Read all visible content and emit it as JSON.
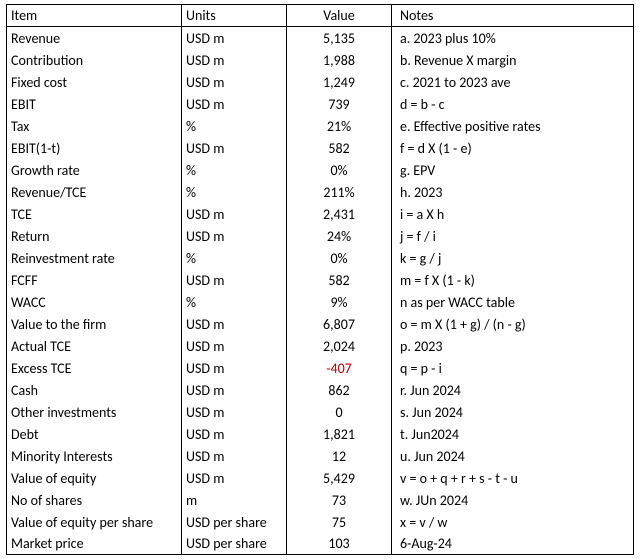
{
  "columns": [
    "Item",
    "Units",
    "Value",
    "Notes"
  ],
  "negative_color": "#c00000",
  "rows": [
    {
      "item": "Revenue",
      "units": "USD m",
      "value": "5,135",
      "neg": false,
      "notes": "a. 2023 plus 10%"
    },
    {
      "item": "Contribution",
      "units": "USD m",
      "value": "1,988",
      "neg": false,
      "notes": "b. Revenue X margin"
    },
    {
      "item": "Fixed cost",
      "units": "USD m",
      "value": "1,249",
      "neg": false,
      "notes": "c. 2021 to 2023 ave"
    },
    {
      "item": "EBIT",
      "units": "USD m",
      "value": "739",
      "neg": false,
      "notes": "d = b - c"
    },
    {
      "item": "Tax",
      "units": "%",
      "value": "21%",
      "neg": false,
      "notes": "e. Effective positive rates"
    },
    {
      "item": "EBIT(1-t)",
      "units": "USD m",
      "value": "582",
      "neg": false,
      "notes": "f = d X (1 - e)"
    },
    {
      "item": "Growth rate",
      "units": "%",
      "value": "0%",
      "neg": false,
      "notes": "g. EPV"
    },
    {
      "item": "Revenue/TCE",
      "units": "%",
      "value": "211%",
      "neg": false,
      "notes": "h. 2023"
    },
    {
      "item": "TCE",
      "units": "USD m",
      "value": "2,431",
      "neg": false,
      "notes": "i = a X h"
    },
    {
      "item": "Return",
      "units": "USD m",
      "value": "24%",
      "neg": false,
      "notes": "j = f / i"
    },
    {
      "item": "Reinvestment rate",
      "units": "%",
      "value": "0%",
      "neg": false,
      "notes": "k = g / j"
    },
    {
      "item": "FCFF",
      "units": "USD m",
      "value": "582",
      "neg": false,
      "notes": "m = f X (1 - k)"
    },
    {
      "item": "WACC",
      "units": "%",
      "value": "9%",
      "neg": false,
      "notes": "n as per WACC table"
    },
    {
      "item": "Value to the firm",
      "units": "USD m",
      "value": "6,807",
      "neg": false,
      "notes": "o = m X (1 + g) / (n - g)"
    },
    {
      "item": "Actual TCE",
      "units": "USD m",
      "value": "2,024",
      "neg": false,
      "notes": "p. 2023"
    },
    {
      "item": "Excess TCE",
      "units": "USD m",
      "value": "-407",
      "neg": true,
      "notes": "q = p - i"
    },
    {
      "item": "Cash",
      "units": "USD m",
      "value": "862",
      "neg": false,
      "notes": "r. Jun 2024"
    },
    {
      "item": "Other investments",
      "units": "USD m",
      "value": "0",
      "neg": false,
      "notes": "s. Jun 2024"
    },
    {
      "item": "Debt",
      "units": "USD m",
      "value": "1,821",
      "neg": false,
      "notes": "t. Jun2024"
    },
    {
      "item": "Minority Interests",
      "units": "USD m",
      "value": "12",
      "neg": false,
      "notes": "u. Jun 2024"
    },
    {
      "item": "Value of equity",
      "units": "USD m",
      "value": "5,429",
      "neg": false,
      "notes": "v = o + q + r + s - t - u"
    },
    {
      "item": "No of shares",
      "units": "m",
      "value": "73",
      "neg": false,
      "notes": "w. JUn 2024"
    },
    {
      "item": "Value of equity per share",
      "units": "USD per share",
      "value": "75",
      "neg": false,
      "notes": "x = v / w"
    },
    {
      "item": "Market price",
      "units": "USD per share",
      "value": "103",
      "neg": false,
      "notes": "6-Aug-24"
    }
  ]
}
